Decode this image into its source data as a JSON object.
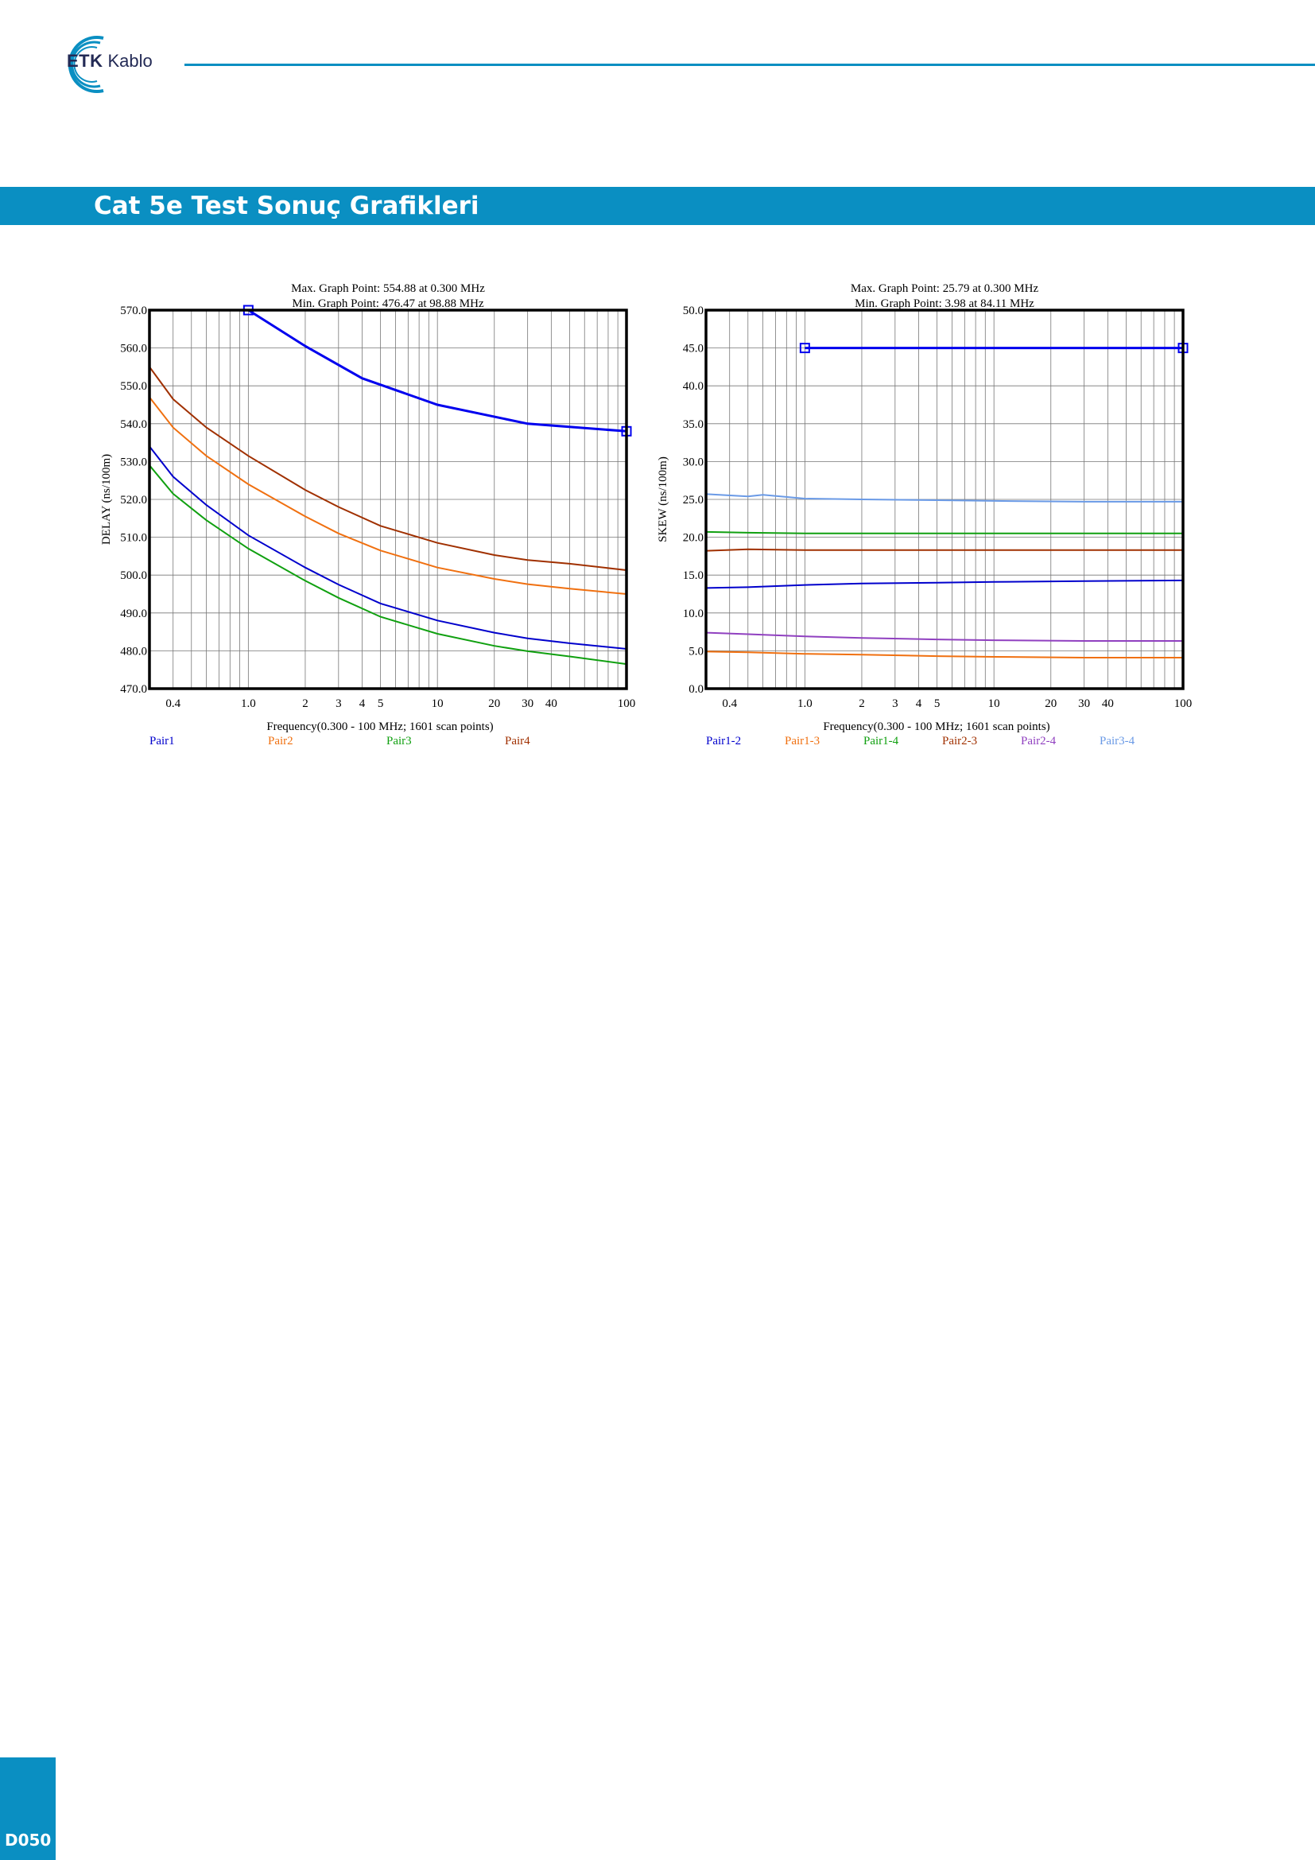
{
  "header": {
    "logo_primary": "ETK",
    "logo_secondary": "Kablo",
    "accent_color": "#0a8fc2"
  },
  "banner": {
    "title": "Cat 5e Test Sonuç Grafikleri"
  },
  "footer": {
    "page_number": "D050"
  },
  "chart_data": [
    {
      "type": "line",
      "title_lines": [
        "Max. Graph Point: 554.88 at 0.300 MHz",
        "Min. Graph Point: 476.47 at 98.88 MHz"
      ],
      "xlabel": "Frequency(0.300 - 100 MHz; 1601 scan points)",
      "ylabel": "DELAY (ns/100m)",
      "xscale": "log",
      "xlim": [
        0.3,
        100
      ],
      "ylim": [
        470,
        570
      ],
      "ytick_step": 10,
      "ytick_labels": [
        "470.0",
        "480.0",
        "490.0",
        "500.0",
        "510.0",
        "520.0",
        "530.0",
        "540.0",
        "550.0",
        "560.0",
        "570.0"
      ],
      "xtick_labels": [
        {
          "v": 0.4,
          "t": "0.4"
        },
        {
          "v": 1,
          "t": "1.0"
        },
        {
          "v": 2,
          "t": "2"
        },
        {
          "v": 3,
          "t": "3"
        },
        {
          "v": 4,
          "t": "4"
        },
        {
          "v": 5,
          "t": "5"
        },
        {
          "v": 10,
          "t": "10"
        },
        {
          "v": 20,
          "t": "20"
        },
        {
          "v": 30,
          "t": "30"
        },
        {
          "v": 40,
          "t": "40"
        },
        {
          "v": 100,
          "t": "100"
        }
      ],
      "grid": true,
      "limit_line": {
        "color": "#0000ee",
        "x": [
          1.0,
          2.0,
          4.0,
          10.0,
          30.0,
          100.0
        ],
        "y": [
          570.0,
          560.5,
          552.0,
          545.0,
          540.0,
          538.0
        ],
        "markers_at": [
          0,
          5
        ]
      },
      "series": [
        {
          "name": "Pair1",
          "color": "#0000cc",
          "x": [
            0.3,
            0.4,
            0.6,
            1.0,
            2.0,
            3.0,
            5.0,
            10.0,
            20.0,
            30.0,
            50.0,
            100.0
          ],
          "y": [
            534.0,
            526.0,
            518.5,
            510.5,
            502.0,
            497.5,
            492.5,
            488.0,
            484.8,
            483.3,
            482.0,
            480.5
          ]
        },
        {
          "name": "Pair2",
          "color": "#f07010",
          "x": [
            0.3,
            0.4,
            0.6,
            1.0,
            2.0,
            3.0,
            5.0,
            10.0,
            20.0,
            30.0,
            50.0,
            100.0
          ],
          "y": [
            547.0,
            539.0,
            531.5,
            524.0,
            515.5,
            511.0,
            506.5,
            502.0,
            499.0,
            497.6,
            496.4,
            495.0
          ]
        },
        {
          "name": "Pair3",
          "color": "#10a010",
          "x": [
            0.3,
            0.4,
            0.6,
            1.0,
            2.0,
            3.0,
            5.0,
            10.0,
            20.0,
            30.0,
            50.0,
            100.0
          ],
          "y": [
            529.0,
            521.5,
            514.5,
            507.0,
            498.5,
            494.0,
            489.0,
            484.5,
            481.3,
            479.9,
            478.5,
            476.5
          ]
        },
        {
          "name": "Pair4",
          "color": "#a03000",
          "x": [
            0.3,
            0.4,
            0.6,
            1.0,
            2.0,
            3.0,
            5.0,
            10.0,
            20.0,
            30.0,
            50.0,
            100.0
          ],
          "y": [
            555.0,
            546.5,
            539.0,
            531.5,
            522.5,
            518.0,
            513.0,
            508.5,
            505.3,
            504.0,
            503.0,
            501.3
          ]
        }
      ]
    },
    {
      "type": "line",
      "title_lines": [
        "Max. Graph Point: 25.79 at 0.300 MHz",
        "Min. Graph Point: 3.98 at 84.11 MHz"
      ],
      "xlabel": "Frequency(0.300 - 100 MHz; 1601 scan points)",
      "ylabel": "SKEW (ns/100m)",
      "xscale": "log",
      "xlim": [
        0.3,
        100
      ],
      "ylim": [
        0,
        50
      ],
      "ytick_step": 5,
      "ytick_labels": [
        "0.0",
        "5.0",
        "10.0",
        "15.0",
        "20.0",
        "25.0",
        "30.0",
        "35.0",
        "40.0",
        "45.0",
        "50.0"
      ],
      "xtick_labels": [
        {
          "v": 0.4,
          "t": "0.4"
        },
        {
          "v": 1,
          "t": "1.0"
        },
        {
          "v": 2,
          "t": "2"
        },
        {
          "v": 3,
          "t": "3"
        },
        {
          "v": 4,
          "t": "4"
        },
        {
          "v": 5,
          "t": "5"
        },
        {
          "v": 10,
          "t": "10"
        },
        {
          "v": 20,
          "t": "20"
        },
        {
          "v": 30,
          "t": "30"
        },
        {
          "v": 40,
          "t": "40"
        },
        {
          "v": 100,
          "t": "100"
        }
      ],
      "grid": true,
      "limit_line": {
        "color": "#0000ee",
        "x": [
          1.0,
          100.0
        ],
        "y": [
          45.0,
          45.0
        ],
        "markers_at": [
          0,
          1
        ]
      },
      "series": [
        {
          "name": "Pair1-2",
          "color": "#0000cc",
          "x": [
            0.3,
            0.5,
            1.0,
            2.0,
            5.0,
            10.0,
            30.0,
            100.0
          ],
          "y": [
            13.3,
            13.4,
            13.7,
            13.9,
            14.0,
            14.1,
            14.2,
            14.3
          ]
        },
        {
          "name": "Pair1-3",
          "color": "#f07010",
          "x": [
            0.3,
            0.5,
            1.0,
            2.0,
            5.0,
            10.0,
            30.0,
            100.0
          ],
          "y": [
            4.9,
            4.8,
            4.6,
            4.5,
            4.3,
            4.2,
            4.1,
            4.1
          ]
        },
        {
          "name": "Pair1-4",
          "color": "#10a010",
          "x": [
            0.3,
            0.5,
            1.0,
            2.0,
            5.0,
            10.0,
            30.0,
            100.0
          ],
          "y": [
            20.7,
            20.6,
            20.5,
            20.5,
            20.5,
            20.5,
            20.5,
            20.5
          ]
        },
        {
          "name": "Pair2-3",
          "color": "#a03000",
          "x": [
            0.3,
            0.5,
            1.0,
            2.0,
            5.0,
            10.0,
            30.0,
            100.0
          ],
          "y": [
            18.2,
            18.4,
            18.3,
            18.3,
            18.3,
            18.3,
            18.3,
            18.3
          ]
        },
        {
          "name": "Pair2-4",
          "color": "#9040c0",
          "x": [
            0.3,
            0.5,
            1.0,
            2.0,
            5.0,
            10.0,
            30.0,
            100.0
          ],
          "y": [
            7.4,
            7.2,
            6.9,
            6.7,
            6.5,
            6.4,
            6.3,
            6.3
          ]
        },
        {
          "name": "Pair3-4",
          "color": "#6a9ae6",
          "x": [
            0.3,
            0.5,
            0.6,
            1.0,
            2.0,
            5.0,
            10.0,
            30.0,
            100.0
          ],
          "y": [
            25.7,
            25.4,
            25.6,
            25.1,
            25.0,
            24.9,
            24.8,
            24.7,
            24.7
          ]
        }
      ]
    }
  ]
}
